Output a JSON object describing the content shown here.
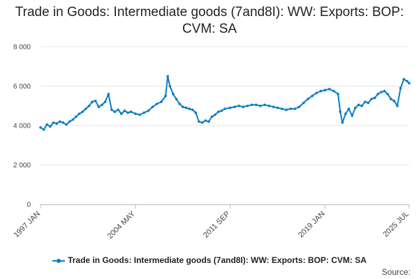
{
  "chart_data": {
    "type": "line",
    "title": "Trade in Goods: Intermediate goods (7and8I): WW: Exports: BOP: CVM: SA",
    "xlabel": "",
    "ylabel": "",
    "ylim": [
      0,
      8000
    ],
    "yticks": [
      0,
      2000,
      4000,
      6000,
      8000
    ],
    "ytick_labels": [
      "0",
      "2 000",
      "4 000",
      "6 000",
      "8 000"
    ],
    "x_range": [
      "1997-01",
      "2025-07"
    ],
    "xtick_labels": [
      "1997 JAN",
      "2004 MAY",
      "2011 SEP",
      "2019 JAN",
      "2025 JUL"
    ],
    "grid": "horizontal",
    "legend": "bottom",
    "color": "#0b7dc1",
    "series": [
      {
        "name": "Trade in Goods: Intermediate goods (7and8I): WW: Exports: BOP: CVM: SA",
        "points": [
          [
            "1997-01",
            3900
          ],
          [
            "1997-04",
            3800
          ],
          [
            "1997-07",
            4050
          ],
          [
            "1997-10",
            3950
          ],
          [
            "1998-01",
            4150
          ],
          [
            "1998-04",
            4100
          ],
          [
            "1998-07",
            4200
          ],
          [
            "1998-10",
            4150
          ],
          [
            "1999-01",
            4050
          ],
          [
            "1999-04",
            4200
          ],
          [
            "1999-07",
            4300
          ],
          [
            "1999-10",
            4450
          ],
          [
            "2000-01",
            4600
          ],
          [
            "2000-04",
            4700
          ],
          [
            "2000-07",
            4850
          ],
          [
            "2000-10",
            5000
          ],
          [
            "2001-01",
            5200
          ],
          [
            "2001-04",
            5250
          ],
          [
            "2001-07",
            4950
          ],
          [
            "2001-10",
            5050
          ],
          [
            "2002-01",
            5200
          ],
          [
            "2002-04",
            5600
          ],
          [
            "2002-07",
            4800
          ],
          [
            "2002-10",
            4700
          ],
          [
            "2003-01",
            4800
          ],
          [
            "2003-04",
            4600
          ],
          [
            "2003-07",
            4750
          ],
          [
            "2003-10",
            4650
          ],
          [
            "2004-01",
            4700
          ],
          [
            "2004-05",
            4600
          ],
          [
            "2004-09",
            4550
          ],
          [
            "2005-01",
            4650
          ],
          [
            "2005-05",
            4750
          ],
          [
            "2005-09",
            4950
          ],
          [
            "2006-01",
            5100
          ],
          [
            "2006-05",
            5200
          ],
          [
            "2006-09",
            5500
          ],
          [
            "2006-11",
            6500
          ],
          [
            "2007-01",
            6000
          ],
          [
            "2007-04",
            5600
          ],
          [
            "2007-07",
            5350
          ],
          [
            "2007-10",
            5100
          ],
          [
            "2008-01",
            4950
          ],
          [
            "2008-04",
            4900
          ],
          [
            "2008-07",
            4850
          ],
          [
            "2008-10",
            4800
          ],
          [
            "2009-01",
            4650
          ],
          [
            "2009-04",
            4200
          ],
          [
            "2009-07",
            4150
          ],
          [
            "2009-10",
            4250
          ],
          [
            "2010-01",
            4200
          ],
          [
            "2010-04",
            4450
          ],
          [
            "2010-07",
            4550
          ],
          [
            "2010-10",
            4700
          ],
          [
            "2011-01",
            4750
          ],
          [
            "2011-04",
            4850
          ],
          [
            "2011-09",
            4900
          ],
          [
            "2012-01",
            4950
          ],
          [
            "2012-05",
            5000
          ],
          [
            "2012-09",
            4950
          ],
          [
            "2013-01",
            5000
          ],
          [
            "2013-05",
            5050
          ],
          [
            "2013-09",
            5050
          ],
          [
            "2014-01",
            5000
          ],
          [
            "2014-05",
            5050
          ],
          [
            "2014-09",
            5000
          ],
          [
            "2015-01",
            4950
          ],
          [
            "2015-05",
            4900
          ],
          [
            "2015-09",
            4850
          ],
          [
            "2016-01",
            4800
          ],
          [
            "2016-05",
            4850
          ],
          [
            "2016-09",
            4850
          ],
          [
            "2017-01",
            4950
          ],
          [
            "2017-05",
            5150
          ],
          [
            "2017-09",
            5350
          ],
          [
            "2018-01",
            5500
          ],
          [
            "2018-05",
            5650
          ],
          [
            "2018-09",
            5750
          ],
          [
            "2019-01",
            5800
          ],
          [
            "2019-05",
            5850
          ],
          [
            "2019-09",
            5750
          ],
          [
            "2020-01",
            5600
          ],
          [
            "2020-03",
            4700
          ],
          [
            "2020-05",
            4150
          ],
          [
            "2020-08",
            4600
          ],
          [
            "2020-11",
            4850
          ],
          [
            "2021-02",
            4500
          ],
          [
            "2021-05",
            4900
          ],
          [
            "2021-08",
            5050
          ],
          [
            "2021-11",
            5000
          ],
          [
            "2022-02",
            5200
          ],
          [
            "2022-05",
            5150
          ],
          [
            "2022-08",
            5350
          ],
          [
            "2022-11",
            5400
          ],
          [
            "2023-02",
            5600
          ],
          [
            "2023-05",
            5700
          ],
          [
            "2023-08",
            5750
          ],
          [
            "2023-11",
            5600
          ],
          [
            "2024-02",
            5350
          ],
          [
            "2024-05",
            5250
          ],
          [
            "2024-08",
            5000
          ],
          [
            "2024-11",
            5900
          ],
          [
            "2025-02",
            6350
          ],
          [
            "2025-05",
            6250
          ],
          [
            "2025-07",
            6150
          ]
        ]
      }
    ],
    "source_label": "Source:"
  }
}
